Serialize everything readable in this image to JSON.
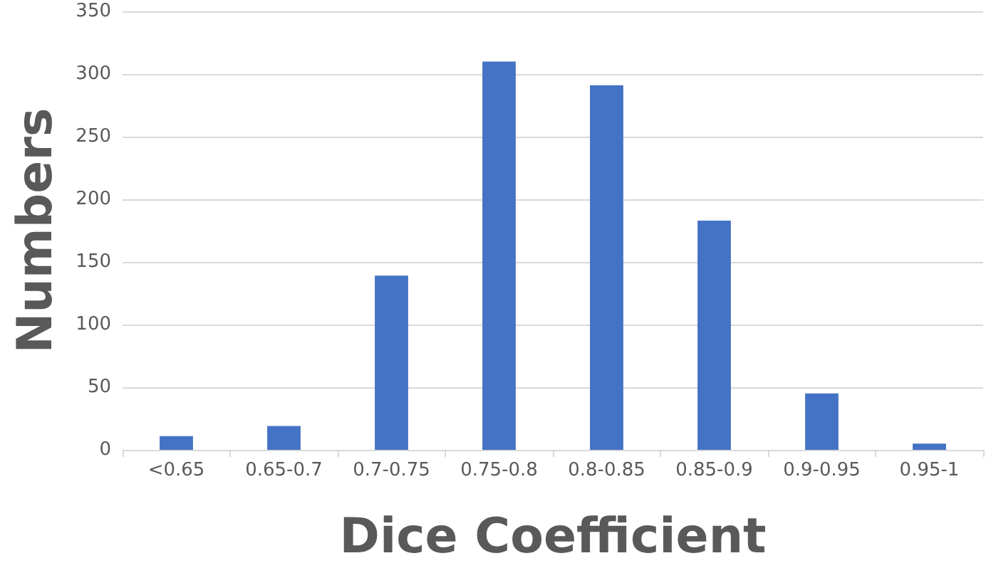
{
  "chart_data": {
    "type": "bar",
    "xlabel": "Dice Coefficient",
    "ylabel": "Numbers",
    "categories": [
      "<0.65",
      "0.65-0.7",
      "0.7-0.75",
      "0.75-0.8",
      "0.8-0.85",
      "0.85-0.9",
      "0.9-0.95",
      "0.95-1"
    ],
    "values": [
      11,
      19,
      139,
      310,
      291,
      183,
      45,
      5
    ],
    "color": "#4472c4",
    "ylim": [
      0,
      350
    ],
    "yticks": [
      0,
      50,
      100,
      150,
      200,
      250,
      300,
      350
    ],
    "grid": "y"
  }
}
